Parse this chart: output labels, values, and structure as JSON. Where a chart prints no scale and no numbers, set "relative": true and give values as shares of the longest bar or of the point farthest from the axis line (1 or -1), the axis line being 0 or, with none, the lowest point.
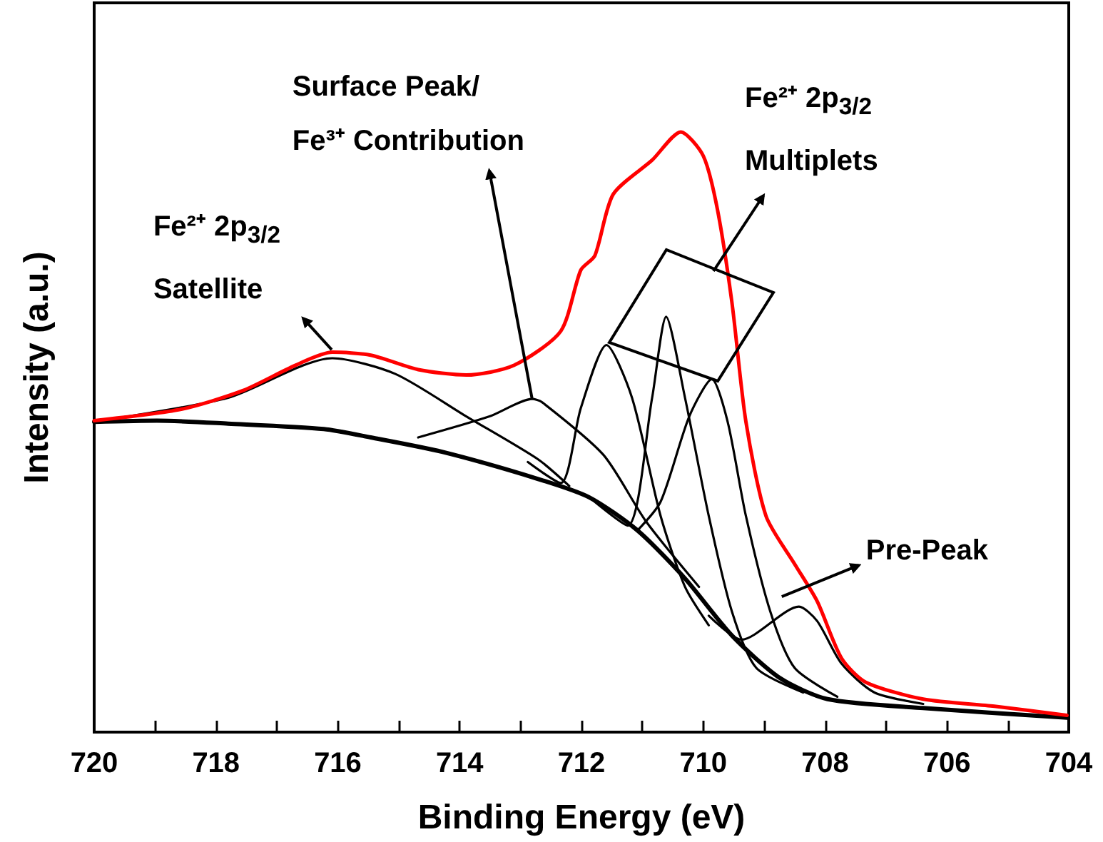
{
  "chart_data": {
    "type": "line",
    "relative": true,
    "xlabel": "Binding Energy (eV)",
    "ylabel": "Intensity (a.u.)",
    "xlim": [
      720,
      704
    ],
    "xticks": [
      720,
      {
        "value": 719,
        "label": null
      },
      718,
      {
        "value": 717,
        "label": null
      },
      716,
      {
        "value": 715,
        "label": null
      },
      714,
      {
        "value": 713,
        "label": null
      },
      712,
      {
        "value": 711,
        "label": null
      },
      710,
      {
        "value": 709,
        "label": null
      },
      708,
      {
        "value": 707,
        "label": null
      },
      706,
      {
        "value": 705,
        "label": null
      },
      704
    ],
    "grid": false,
    "marker": "none",
    "line_style": "solid",
    "series": [
      {
        "color": "#000000",
        "x": [
          720,
          718.97,
          717.8,
          716.23,
          715.46,
          714.29,
          712.72,
          711.87,
          711.08,
          710.3,
          709.53,
          708.74,
          707.96,
          706.39,
          704.03
        ],
        "values": [
          0.517,
          0.519,
          0.514,
          0.505,
          0.491,
          0.467,
          0.422,
          0.391,
          0.336,
          0.256,
          0.161,
          0.09,
          0.055,
          0.04,
          0.024
        ]
      },
      {
        "color": "#000000",
        "x": [
          720,
          717.8,
          716.09,
          715.06,
          713.89,
          712.72,
          712.2
        ],
        "values": [
          0.517,
          0.557,
          0.623,
          0.597,
          0.526,
          0.455,
          0.41
        ]
      },
      {
        "color": "#000000",
        "x": [
          714.68,
          713.51,
          712.81,
          712.65,
          711.64,
          710.94,
          710.07
        ],
        "values": [
          0.491,
          0.526,
          0.555,
          0.55,
          0.462,
          0.351,
          0.242
        ]
      },
      {
        "color": "#000000",
        "x": [
          712.88,
          712.34,
          712.01,
          711.59,
          711.17,
          710.7,
          710.3,
          709.91
        ],
        "values": [
          0.45,
          0.415,
          0.54,
          0.645,
          0.557,
          0.36,
          0.242,
          0.178
        ]
      },
      {
        "color": "#000000",
        "x": [
          711.87,
          711.24,
          710.84,
          710.61,
          710.3,
          709.91,
          709.53,
          709.13,
          708.36
        ],
        "values": [
          0.391,
          0.344,
          0.557,
          0.692,
          0.557,
          0.36,
          0.201,
          0.107,
          0.066
        ]
      },
      {
        "color": "#000000",
        "x": [
          711.08,
          710.7,
          710.23,
          709.86,
          709.6,
          709.3,
          708.9,
          708.5,
          707.8
        ],
        "values": [
          0.336,
          0.384,
          0.526,
          0.588,
          0.517,
          0.36,
          0.201,
          0.107,
          0.059
        ]
      },
      {
        "color": "#000000",
        "x": [
          709.91,
          709.37,
          708.43,
          708.13,
          707.73,
          707.19,
          706.39
        ],
        "values": [
          0.194,
          0.154,
          0.209,
          0.185,
          0.114,
          0.066,
          0.047
        ]
      },
      {
        "color": "#ff0000",
        "x": [
          720,
          718.57,
          717.56,
          716.7,
          716.09,
          715.46,
          714.68,
          713.89,
          713.11,
          712.34,
          712.01,
          711.78,
          711.48,
          710.84,
          710.37,
          710.0,
          709.77,
          709.53,
          709.3,
          708.97,
          708.5,
          708.13,
          707.73,
          707.33,
          706.39,
          705.22,
          704.03
        ],
        "values": [
          0.519,
          0.538,
          0.569,
          0.611,
          0.633,
          0.628,
          0.604,
          0.595,
          0.611,
          0.668,
          0.77,
          0.794,
          0.896,
          0.953,
          1.0,
          0.96,
          0.872,
          0.716,
          0.517,
          0.36,
          0.28,
          0.218,
          0.123,
          0.083,
          0.055,
          0.043,
          0.028
        ]
      }
    ],
    "annotations": [
      {
        "text": "Fe²⁺ 2p$_{3/2}$\nSatellite",
        "x": 716.1,
        "y": 0.63
      },
      {
        "text": "Surface Peak/\nFe³⁺ Contribution",
        "x": 712.81,
        "y": 0.555
      },
      "Fe²⁺ 2p$_{3/2}$\nMultiplets",
      {
        "text": "Pre-Peak",
        "x": 708.43,
        "y": 0.209
      }
    ]
  }
}
